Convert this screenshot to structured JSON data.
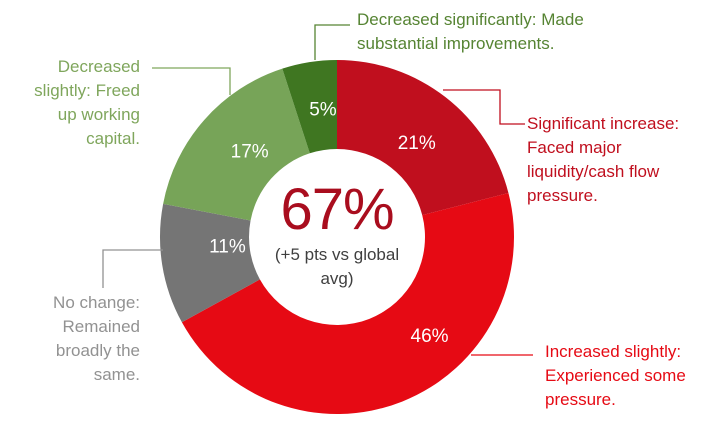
{
  "chart_data": {
    "type": "pie",
    "variant": "donut",
    "title": "",
    "legend_position": "callout-labels",
    "direction": "clockwise",
    "start_angle_deg": 0,
    "value_label_color": "#FFFFFF",
    "center": {
      "headline": "67%",
      "headline_color": "#A90D1E",
      "subtext": "(+5 pts vs global\navg)",
      "subtext_color": "#3F3F3F"
    },
    "slices": [
      {
        "name": "significant-increase",
        "value": 21,
        "pct_label": "21%",
        "color": "#C00F1E",
        "label_color": "#C00F1E",
        "callout": "Significant increase:\nFaced major\nliquidity/cash flow\npressure."
      },
      {
        "name": "increased-slightly",
        "value": 46,
        "pct_label": "46%",
        "color": "#E60A14",
        "label_color": "#E60A14",
        "callout": "Increased slightly:\nExperienced some\npressure."
      },
      {
        "name": "no-change",
        "value": 11,
        "pct_label": "11%",
        "color": "#757575",
        "label_color": "#929292",
        "callout": "No change:\nRemained\nbroadly the\nsame."
      },
      {
        "name": "decreased-slightly",
        "value": 17,
        "pct_label": "17%",
        "color": "#77A458",
        "label_color": "#7FA65C",
        "callout": "Decreased\nslightly: Freed\nup working\ncapital."
      },
      {
        "name": "decreased-significantly",
        "value": 5,
        "pct_label": "5%",
        "color": "#3F7621",
        "label_color": "#568433",
        "callout": "Decreased significantly: Made\nsubstantial improvements."
      }
    ]
  }
}
